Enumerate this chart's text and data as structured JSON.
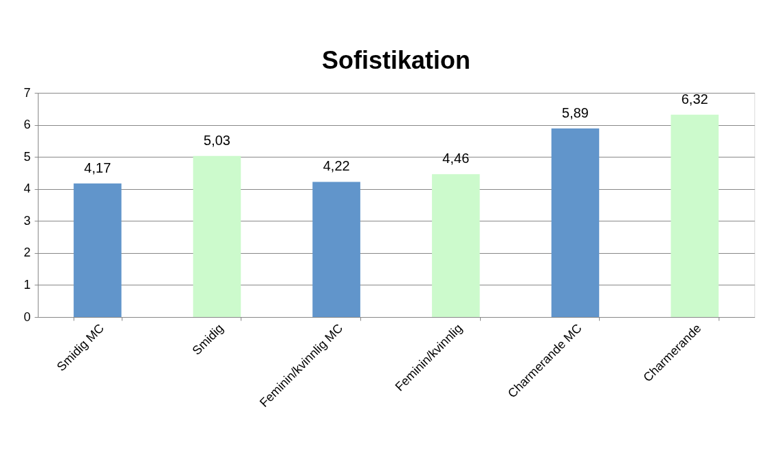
{
  "chart_data": {
    "type": "bar",
    "title": "Sofistikation",
    "categories": [
      "Smidig MC",
      "Smidig",
      "Feminin/kvinnlig MC",
      "Feminin/kvinnlig",
      "Charmerande MC",
      "Charmerande"
    ],
    "values": [
      4.17,
      5.03,
      4.22,
      4.46,
      5.89,
      6.32
    ],
    "colors": [
      "#6195cb",
      "#ccfacc",
      "#6195cb",
      "#ccfacc",
      "#6195cb",
      "#ccfacc"
    ],
    "value_labels": [
      "4,17",
      "5,03",
      "4,22",
      "4,46",
      "5,89",
      "6,32"
    ],
    "ylim": [
      0,
      7
    ],
    "yticks": [
      0,
      1,
      2,
      3,
      4,
      5,
      6,
      7
    ],
    "grid": "y"
  }
}
